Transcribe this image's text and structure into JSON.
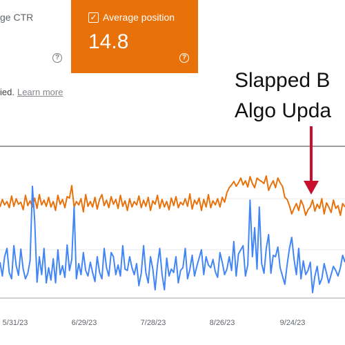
{
  "metrics": {
    "ctr": {
      "label": "ge CTR",
      "selected": false
    },
    "position": {
      "label": "Average position",
      "value": "14.8",
      "selected": true
    }
  },
  "icons": {
    "help": "help-circle-icon",
    "checkbox": "check-icon"
  },
  "help_glyph": "?",
  "check_glyph": "✓",
  "notice": {
    "text": "ied.",
    "link": "Learn more"
  },
  "annotation": {
    "line1": "Slapped B",
    "line2": "Algo Upda"
  },
  "colors": {
    "position": "#e8710a",
    "clicks": "#4285f4",
    "arrow": "#c8102e",
    "grid": "#e0e0e0"
  },
  "chart_data": {
    "type": "line",
    "title": "",
    "xlabel": "",
    "ylabel": "",
    "tick_labels": [
      "5/31/23",
      "6/29/23",
      "7/28/23",
      "8/26/23",
      "9/24/23"
    ],
    "series": [
      {
        "values": [
          300,
          289,
          297,
          292,
          301,
          284,
          299,
          288,
          296,
          293,
          304,
          283,
          298,
          291,
          300,
          287,
          302,
          282,
          297,
          290,
          299,
          286,
          300,
          292,
          305,
          283,
          296,
          289,
          301,
          285,
          287,
          269,
          300,
          292,
          297,
          288,
          307,
          282,
          299,
          292,
          300,
          286,
          303,
          289,
          282,
          298,
          290,
          301,
          285,
          296,
          289,
          302,
          283,
          299,
          291,
          305,
          288,
          300,
          292,
          297,
          284,
          301,
          290,
          299,
          286,
          305,
          291,
          296,
          283,
          302,
          289,
          300,
          292,
          304,
          287,
          298,
          285,
          301,
          293,
          297,
          288,
          299,
          281,
          303,
          290,
          296,
          287,
          305,
          289,
          300,
          282,
          301,
          291,
          297,
          288,
          300,
          286,
          293,
          279,
          272,
          268,
          263,
          270,
          265,
          258,
          268,
          262,
          271,
          256,
          266,
          272,
          258,
          261,
          263,
          266,
          255,
          276,
          268,
          262,
          272,
          258,
          265,
          270,
          286,
          289,
          298,
          310,
          302,
          295,
          305,
          290,
          298,
          312,
          304,
          300,
          290,
          306,
          296,
          302,
          288,
          310,
          294,
          300,
          308,
          290,
          302,
          298,
          312,
          295,
          300
        ]
      },
      {
        "values": [
          380,
          400,
          372,
          360,
          395,
          404,
          356,
          385,
          399,
          361,
          390,
          404,
          396,
          378,
          270,
          320,
          409,
          372,
          398,
          360,
          410,
          388,
          406,
          375,
          410,
          362,
          398,
          385,
          402,
          355,
          392,
          376,
          300,
          404,
          382,
          398,
          366,
          392,
          400,
          380,
          395,
          408,
          372,
          395,
          404,
          360,
          388,
          400,
          366,
          372,
          398,
          384,
          400,
          356,
          390,
          392,
          372,
          388,
          398,
          382,
          414,
          396,
          356,
          395,
          410,
          372,
          390,
          420,
          384,
          360,
          398,
          420,
          374,
          400,
          390,
          395,
          372,
          410,
          392,
          388,
          360,
          404,
          390,
          370,
          400,
          386,
          374,
          362,
          398,
          372,
          384,
          388,
          376,
          394,
          402,
          366,
          380,
          398,
          390,
          372,
          392,
          350,
          400,
          368,
          362,
          356,
          400,
          384,
          290,
          372,
          330,
          390,
          300,
          382,
          396,
          360,
          340,
          396,
          370,
          372,
          358,
          388,
          400,
          412,
          384,
          360,
          344,
          376,
          398,
          360,
          404,
          378,
          398,
          392,
          380,
          424,
          400,
          386,
          412,
          404,
          382,
          396,
          410,
          398,
          386,
          392,
          400,
          388,
          370,
          380
        ]
      }
    ]
  }
}
